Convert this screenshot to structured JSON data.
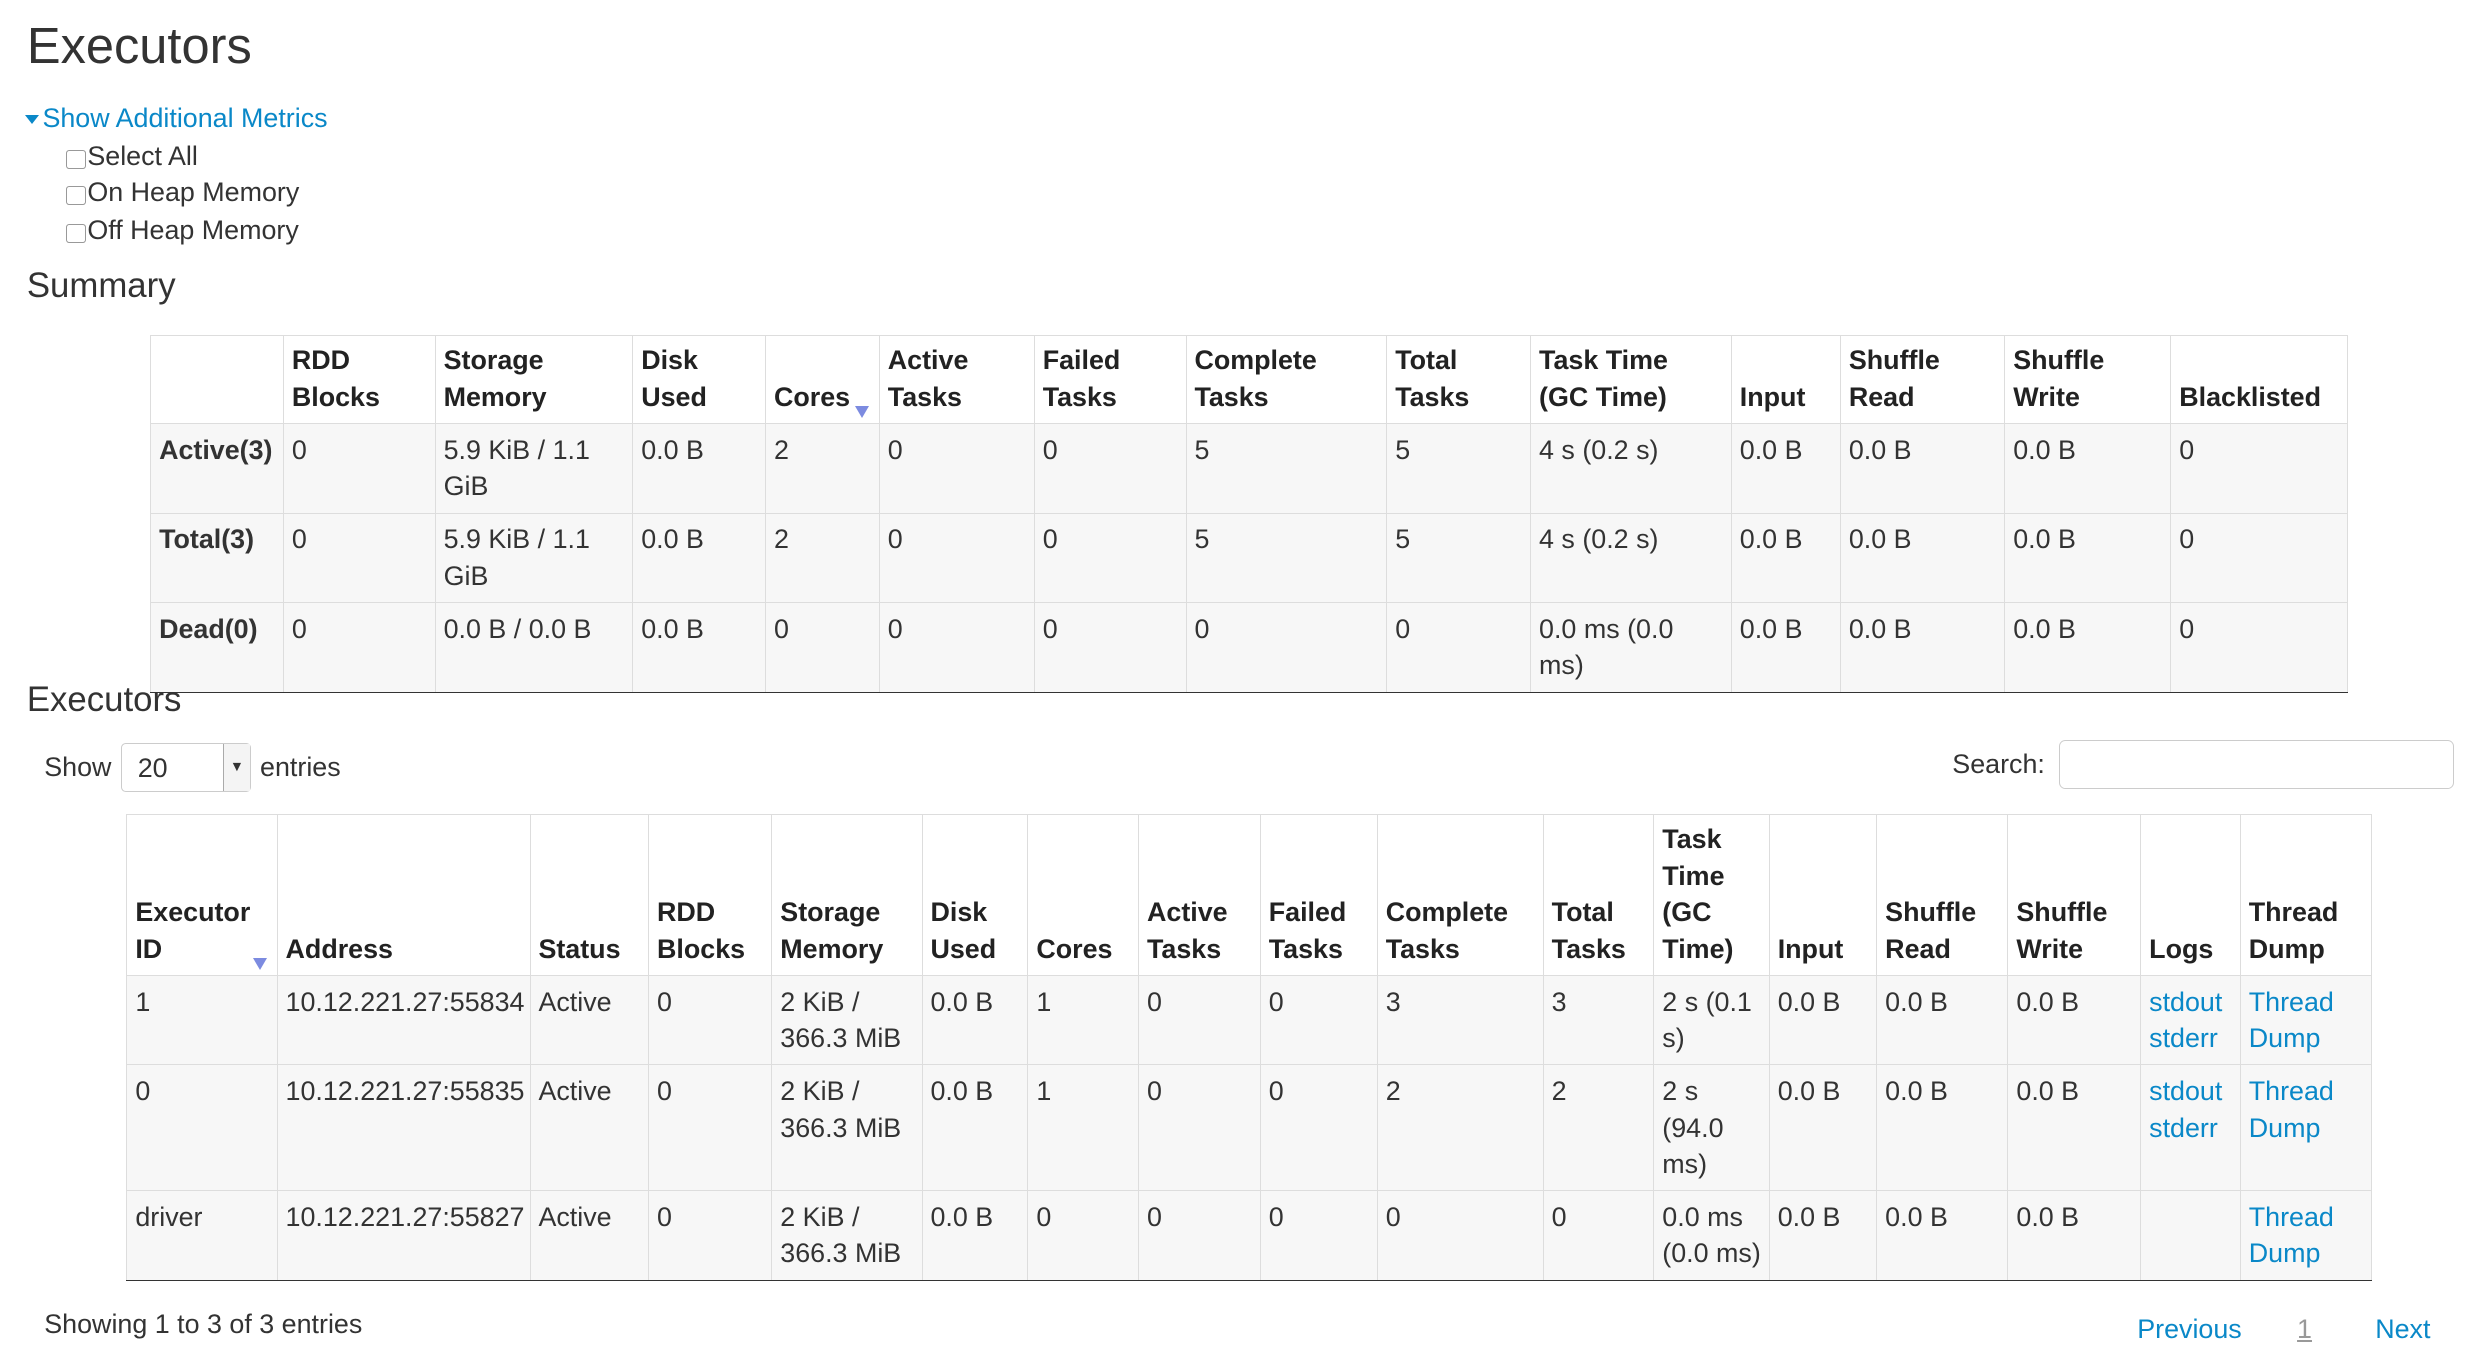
{
  "page_title": "Executors",
  "metrics_toggle": "Show Additional Metrics",
  "metrics_options": [
    "Select All",
    "On Heap Memory",
    "Off Heap Memory"
  ],
  "summary": {
    "title": "Summary",
    "headers": [
      "",
      "RDD Blocks",
      "Storage Memory",
      "Disk Used",
      "Cores",
      "Active Tasks",
      "Failed Tasks",
      "Complete Tasks",
      "Total Tasks",
      "Task Time (GC Time)",
      "Input",
      "Shuffle Read",
      "Shuffle Write",
      "Blacklisted"
    ],
    "rows": [
      [
        "Active(3)",
        "0",
        "5.9 KiB / 1.1 GiB",
        "0.0 B",
        "2",
        "0",
        "0",
        "5",
        "5",
        "4 s (0.2 s)",
        "0.0 B",
        "0.0 B",
        "0.0 B",
        "0"
      ],
      [
        "Total(3)",
        "0",
        "5.9 KiB / 1.1 GiB",
        "0.0 B",
        "2",
        "0",
        "0",
        "5",
        "5",
        "4 s (0.2 s)",
        "0.0 B",
        "0.0 B",
        "0.0 B",
        "0"
      ],
      [
        "Dead(0)",
        "0",
        "0.0 B / 0.0 B",
        "0.0 B",
        "0",
        "0",
        "0",
        "0",
        "0",
        "0.0 ms (0.0 ms)",
        "0.0 B",
        "0.0 B",
        "0.0 B",
        "0"
      ]
    ]
  },
  "executors": {
    "title": "Executors",
    "show_label": "Show",
    "page_size": "20",
    "entries_label": "entries",
    "search_label": "Search:",
    "search_value": "",
    "headers": [
      "Executor ID",
      "Address",
      "Status",
      "RDD Blocks",
      "Storage Memory",
      "Disk Used",
      "Cores",
      "Active Tasks",
      "Failed Tasks",
      "Complete Tasks",
      "Total Tasks",
      "Task Time (GC Time)",
      "Input",
      "Shuffle Read",
      "Shuffle Write",
      "Logs",
      "Thread Dump"
    ],
    "rows": [
      [
        "1",
        "10.12.221.27:55834",
        "Active",
        "0",
        "2 KiB / 366.3 MiB",
        "0.0 B",
        "1",
        "0",
        "0",
        "3",
        "3",
        "2 s (0.1 s)",
        "0.0 B",
        "0.0 B",
        "0.0 B",
        [
          "stdout",
          "stderr"
        ],
        "Thread Dump"
      ],
      [
        "0",
        "10.12.221.27:55835",
        "Active",
        "0",
        "2 KiB / 366.3 MiB",
        "0.0 B",
        "1",
        "0",
        "0",
        "2",
        "2",
        "2 s (94.0 ms)",
        "0.0 B",
        "0.0 B",
        "0.0 B",
        [
          "stdout",
          "stderr"
        ],
        "Thread Dump"
      ],
      [
        "driver",
        "10.12.221.27:55827",
        "Active",
        "0",
        "2 KiB / 366.3 MiB",
        "0.0 B",
        "0",
        "0",
        "0",
        "0",
        "0",
        "0.0 ms (0.0 ms)",
        "0.0 B",
        "0.0 B",
        "0.0 B",
        [],
        "Thread Dump"
      ]
    ],
    "info": "Showing 1 to 3 of 3 entries",
    "pagination": {
      "previous": "Previous",
      "current": "1",
      "next": "Next"
    }
  },
  "colors": {
    "link": "#0a88c8",
    "sort_arrow": "#7c8be0",
    "row_bg": "#f7f7f7"
  }
}
